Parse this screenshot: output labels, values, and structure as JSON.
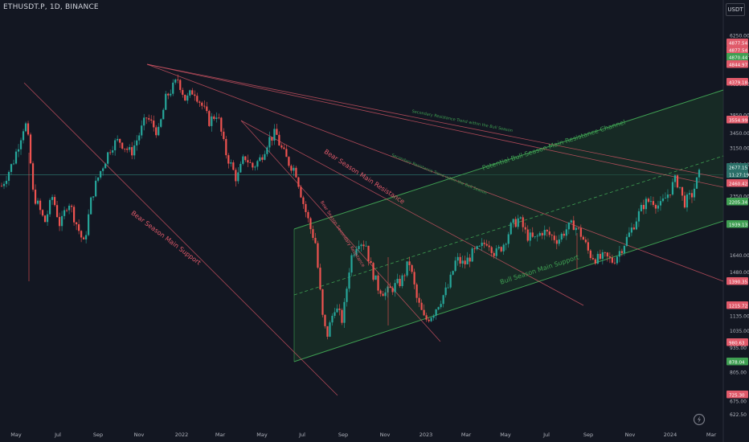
{
  "header": {
    "symbol": "ETHUSDT.P, 1D, BINANCE",
    "currency": "USDT"
  },
  "colors": {
    "background": "#131722",
    "up": "#26a69a",
    "down": "#ef5350",
    "resistance": "#e05a6a",
    "channel": "#3f9f52",
    "channel_fill": "#1b3a28",
    "axis_text": "#b2b5be",
    "price_line": "#2a6f68"
  },
  "chart_data": {
    "type": "candlestick",
    "title": "",
    "scale": "log",
    "ylim": [
      580,
      7100
    ],
    "x_ticks": [
      "May",
      "Jul",
      "Sep",
      "Nov",
      "2022",
      "Mar",
      "May",
      "Jul",
      "Sep",
      "Nov",
      "2023",
      "Mar",
      "May",
      "Jul",
      "Sep",
      "Nov",
      "2024",
      "Mar"
    ],
    "y_ticks": [
      6250,
      5550,
      4650,
      3850,
      3450,
      3150,
      2850,
      2350,
      1640,
      1480,
      1135,
      1035,
      935,
      805,
      675,
      622.5
    ],
    "y_tick_labels": [
      "6250.00",
      "5550.00",
      "4650.00",
      "3850.00",
      "3450.00",
      "3150.00",
      "2850.00",
      "2350.00",
      "1640.00",
      "1480.00",
      "1135.00",
      "1035.00",
      "935.00",
      "805.00",
      "675.00",
      "622.50"
    ],
    "price_tags": [
      {
        "label": "4877.54",
        "value": 4877.54,
        "color": "#e05a6a"
      },
      {
        "label": "4877.54",
        "value": 4877.54,
        "color": "#e05a6a"
      },
      {
        "label": "4870.44",
        "value": 4870.44,
        "color": "#3f9f52"
      },
      {
        "label": "4844.97",
        "value": 4844.97,
        "color": "#e05a6a"
      },
      {
        "label": "4379.18",
        "value": 4379.18,
        "color": "#e05a6a"
      },
      {
        "label": "3554.99",
        "value": 3554.99,
        "color": "#e05a6a"
      },
      {
        "label": "2677.15",
        "value": 2677.15,
        "color": "#2a6f68"
      },
      {
        "label": "11:27:19",
        "value": 2600,
        "color": "#2a6f68"
      },
      {
        "label": "2460.42",
        "value": 2460.42,
        "color": "#e05a6a"
      },
      {
        "label": "2205.34",
        "value": 2205.34,
        "color": "#3f9f52"
      },
      {
        "label": "1939.13",
        "value": 1939.13,
        "color": "#3f9f52"
      },
      {
        "label": "1390.35",
        "value": 1390.35,
        "color": "#e05a6a"
      },
      {
        "label": "1215.72",
        "value": 1215.72,
        "color": "#e05a6a"
      },
      {
        "label": "980.63",
        "value": 980.63,
        "color": "#e05a6a"
      },
      {
        "label": "878.04",
        "value": 878.04,
        "color": "#3f9f52"
      },
      {
        "label": "725.30",
        "value": 725.3,
        "color": "#e05a6a"
      }
    ],
    "price_path": [
      [
        0,
        2500
      ],
      [
        3,
        2900
      ],
      [
        6,
        3700
      ],
      [
        7,
        3200
      ],
      [
        8,
        2400
      ],
      [
        11,
        2000
      ],
      [
        13,
        2350
      ],
      [
        15,
        1950
      ],
      [
        17,
        2300
      ],
      [
        19,
        2000
      ],
      [
        21,
        1750
      ],
      [
        23,
        2350
      ],
      [
        25,
        2700
      ],
      [
        28,
        3200
      ],
      [
        30,
        3300
      ],
      [
        33,
        3050
      ],
      [
        35,
        3400
      ],
      [
        37,
        3800
      ],
      [
        40,
        3450
      ],
      [
        42,
        4300
      ],
      [
        44,
        4600
      ],
      [
        45,
        4800
      ],
      [
        47,
        4200
      ],
      [
        49,
        4500
      ],
      [
        51,
        4100
      ],
      [
        53,
        3700
      ],
      [
        55,
        3900
      ],
      [
        57,
        3100
      ],
      [
        60,
        2600
      ],
      [
        62,
        3000
      ],
      [
        64,
        2800
      ],
      [
        66,
        2950
      ],
      [
        68,
        3300
      ],
      [
        70,
        3450
      ],
      [
        71,
        3200
      ],
      [
        73,
        2900
      ],
      [
        75,
        2750
      ],
      [
        77,
        2250
      ],
      [
        79,
        1900
      ],
      [
        80,
        1800
      ],
      [
        82,
        1100
      ],
      [
        83,
        1000
      ],
      [
        85,
        1200
      ],
      [
        87,
        1100
      ],
      [
        89,
        1600
      ],
      [
        91,
        1800
      ],
      [
        93,
        1750
      ],
      [
        94,
        1550
      ],
      [
        96,
        1350
      ],
      [
        98,
        1300
      ],
      [
        100,
        1350
      ],
      [
        102,
        1400
      ],
      [
        104,
        1580
      ],
      [
        106,
        1250
      ],
      [
        108,
        1100
      ],
      [
        110,
        1150
      ],
      [
        112,
        1250
      ],
      [
        114,
        1350
      ],
      [
        116,
        1600
      ],
      [
        118,
        1550
      ],
      [
        120,
        1650
      ],
      [
        122,
        1700
      ],
      [
        124,
        1800
      ],
      [
        126,
        1650
      ],
      [
        128,
        1750
      ],
      [
        130,
        1950
      ],
      [
        132,
        2050
      ],
      [
        134,
        1850
      ],
      [
        136,
        1800
      ],
      [
        138,
        1900
      ],
      [
        140,
        1850
      ],
      [
        142,
        1800
      ],
      [
        144,
        1920
      ],
      [
        146,
        1980
      ],
      [
        148,
        1850
      ],
      [
        150,
        1650
      ],
      [
        152,
        1600
      ],
      [
        154,
        1620
      ],
      [
        156,
        1580
      ],
      [
        158,
        1700
      ],
      [
        160,
        1850
      ],
      [
        162,
        2050
      ],
      [
        164,
        2250
      ],
      [
        166,
        2300
      ],
      [
        168,
        2200
      ],
      [
        170,
        2380
      ],
      [
        172,
        2600
      ],
      [
        173,
        2500
      ],
      [
        174,
        2250
      ],
      [
        176,
        2350
      ],
      [
        178,
        2677
      ]
    ],
    "price_x_range": [
      0,
      178
    ],
    "last_price": 2677.15,
    "annotations": [
      "Bear Season Main Support",
      "Bear Season Main Resistance",
      "Bear Season Secondary Resistance",
      "Secondary Resistance Trend within the Bull Season",
      "Secondary Resistance Trend within the Bull Season",
      "Potential Bull Season Main Resistance Channel",
      "Bull Season Main Support"
    ]
  }
}
